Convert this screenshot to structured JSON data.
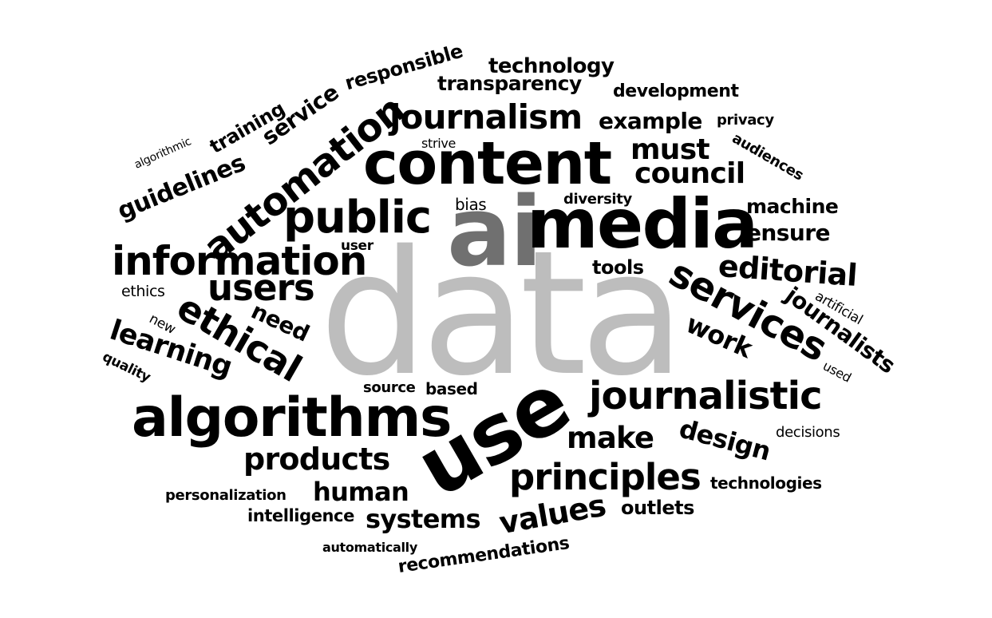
{
  "colors": {
    "background": "#ffffff",
    "primary": "#000000",
    "data": "#bdbdbd",
    "ai": "#707070"
  },
  "words": [
    "data",
    "ai",
    "media",
    "content",
    "use",
    "algorithms",
    "public",
    "information",
    "users",
    "automation",
    "journalism",
    "journalistic",
    "services",
    "principles",
    "ethical",
    "products",
    "must",
    "council",
    "editorial",
    "make",
    "values",
    "human",
    "systems",
    "learning",
    "guidelines",
    "design",
    "work",
    "need",
    "journalists",
    "example",
    "technology",
    "transparency",
    "ensure",
    "machine",
    "service",
    "responsible",
    "training",
    "development",
    "outlets",
    "tools",
    "recommendations",
    "intelligence",
    "technologies",
    "decisions",
    "personalization",
    "audiences",
    "artificial",
    "privacy",
    "diversity",
    "bias",
    "strive",
    "based",
    "source",
    "user",
    "ethics",
    "new",
    "quality",
    "used",
    "automatically",
    "algorithmic"
  ]
}
